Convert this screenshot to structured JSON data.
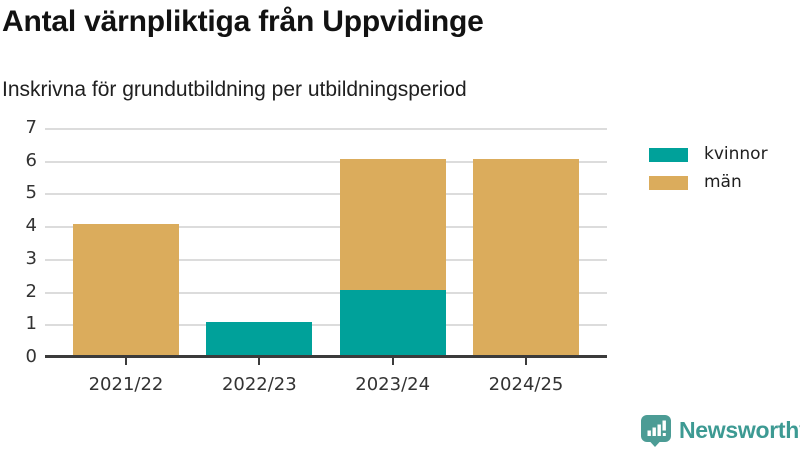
{
  "title": "Antal värnpliktiga från Uppvidinge",
  "subtitle": "Inskrivna för grundutbildning per utbildningsperiod",
  "colors": {
    "kvinnor": "#00A19A",
    "man": "#DBAC5C",
    "grid": "#DCDCDC",
    "axis": "#3B3B3B",
    "tick_text": "#333333",
    "brand_icon": "#4C9C95",
    "brand_text": "#3D9A93"
  },
  "legend": {
    "items": [
      {
        "label": "kvinnor",
        "color": "#00A19A"
      },
      {
        "label": "män",
        "color": "#DBAC5C"
      }
    ]
  },
  "chart_data": {
    "type": "bar",
    "stacked": true,
    "title": "Antal värnpliktiga från Uppvidinge",
    "subtitle": "Inskrivna för grundutbildning per utbildningsperiod",
    "categories": [
      "2021/22",
      "2022/23",
      "2023/24",
      "2024/25"
    ],
    "series": [
      {
        "name": "kvinnor",
        "color": "#00A19A",
        "values": [
          0,
          1,
          2,
          0
        ]
      },
      {
        "name": "män",
        "color": "#DBAC5C",
        "values": [
          4,
          0,
          4,
          6
        ]
      }
    ],
    "totals": [
      4,
      1,
      6,
      6
    ],
    "xlabel": "",
    "ylabel": "",
    "ylim": [
      0,
      7
    ],
    "yticks": [
      0,
      1,
      2,
      3,
      4,
      5,
      6,
      7
    ],
    "grid": true,
    "legend_position": "right"
  },
  "branding": {
    "logo_text": "Newsworthy",
    "logo_icon": "bar-chart-speech-bubble-icon"
  }
}
